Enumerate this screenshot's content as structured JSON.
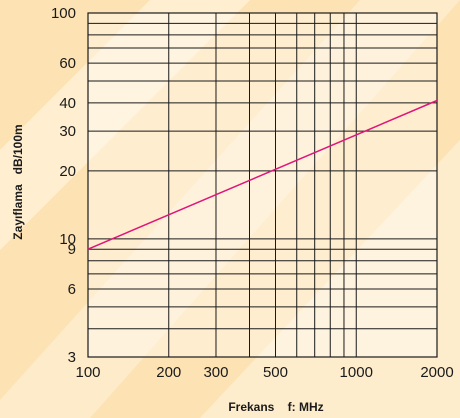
{
  "chart_data": {
    "type": "line",
    "xlabel": "Frekans    f: MHz",
    "ylabel": "Zayıflama   dB/100m",
    "x_scale": "log",
    "y_scale": "log",
    "xlim": [
      100,
      2000
    ],
    "ylim": [
      3,
      100
    ],
    "grid": true,
    "x_ticks": [
      {
        "value": 100,
        "label": "100"
      },
      {
        "value": 200,
        "label": "200"
      },
      {
        "value": 300,
        "label": "300"
      },
      {
        "value": 500,
        "label": "500"
      },
      {
        "value": 1000,
        "label": "1000"
      },
      {
        "value": 2000,
        "label": "2000"
      }
    ],
    "x_gridlines": [
      100,
      200,
      300,
      400,
      500,
      600,
      700,
      800,
      900,
      1000,
      2000
    ],
    "y_ticks": [
      {
        "value": 3,
        "label": "3"
      },
      {
        "value": 6,
        "label": "6"
      },
      {
        "value": 9,
        "label": "9"
      },
      {
        "value": 10,
        "label": "10"
      },
      {
        "value": 20,
        "label": "20"
      },
      {
        "value": 30,
        "label": "30"
      },
      {
        "value": 40,
        "label": "40"
      },
      {
        "value": 60,
        "label": "60"
      },
      {
        "value": 100,
        "label": "100"
      }
    ],
    "y_gridlines": [
      3,
      4,
      5,
      6,
      7,
      8,
      9,
      10,
      20,
      30,
      40,
      50,
      60,
      70,
      80,
      90,
      100
    ],
    "series": [
      {
        "color": "#e0157a",
        "x": [
          100,
          2000
        ],
        "y": [
          9,
          41
        ]
      }
    ]
  },
  "colors": {
    "background": "#fde3b4",
    "stripe_light": "#fff3dc",
    "plot_area": "#ffffff",
    "grid": "#1a1a1a",
    "series": "#e0157a"
  }
}
